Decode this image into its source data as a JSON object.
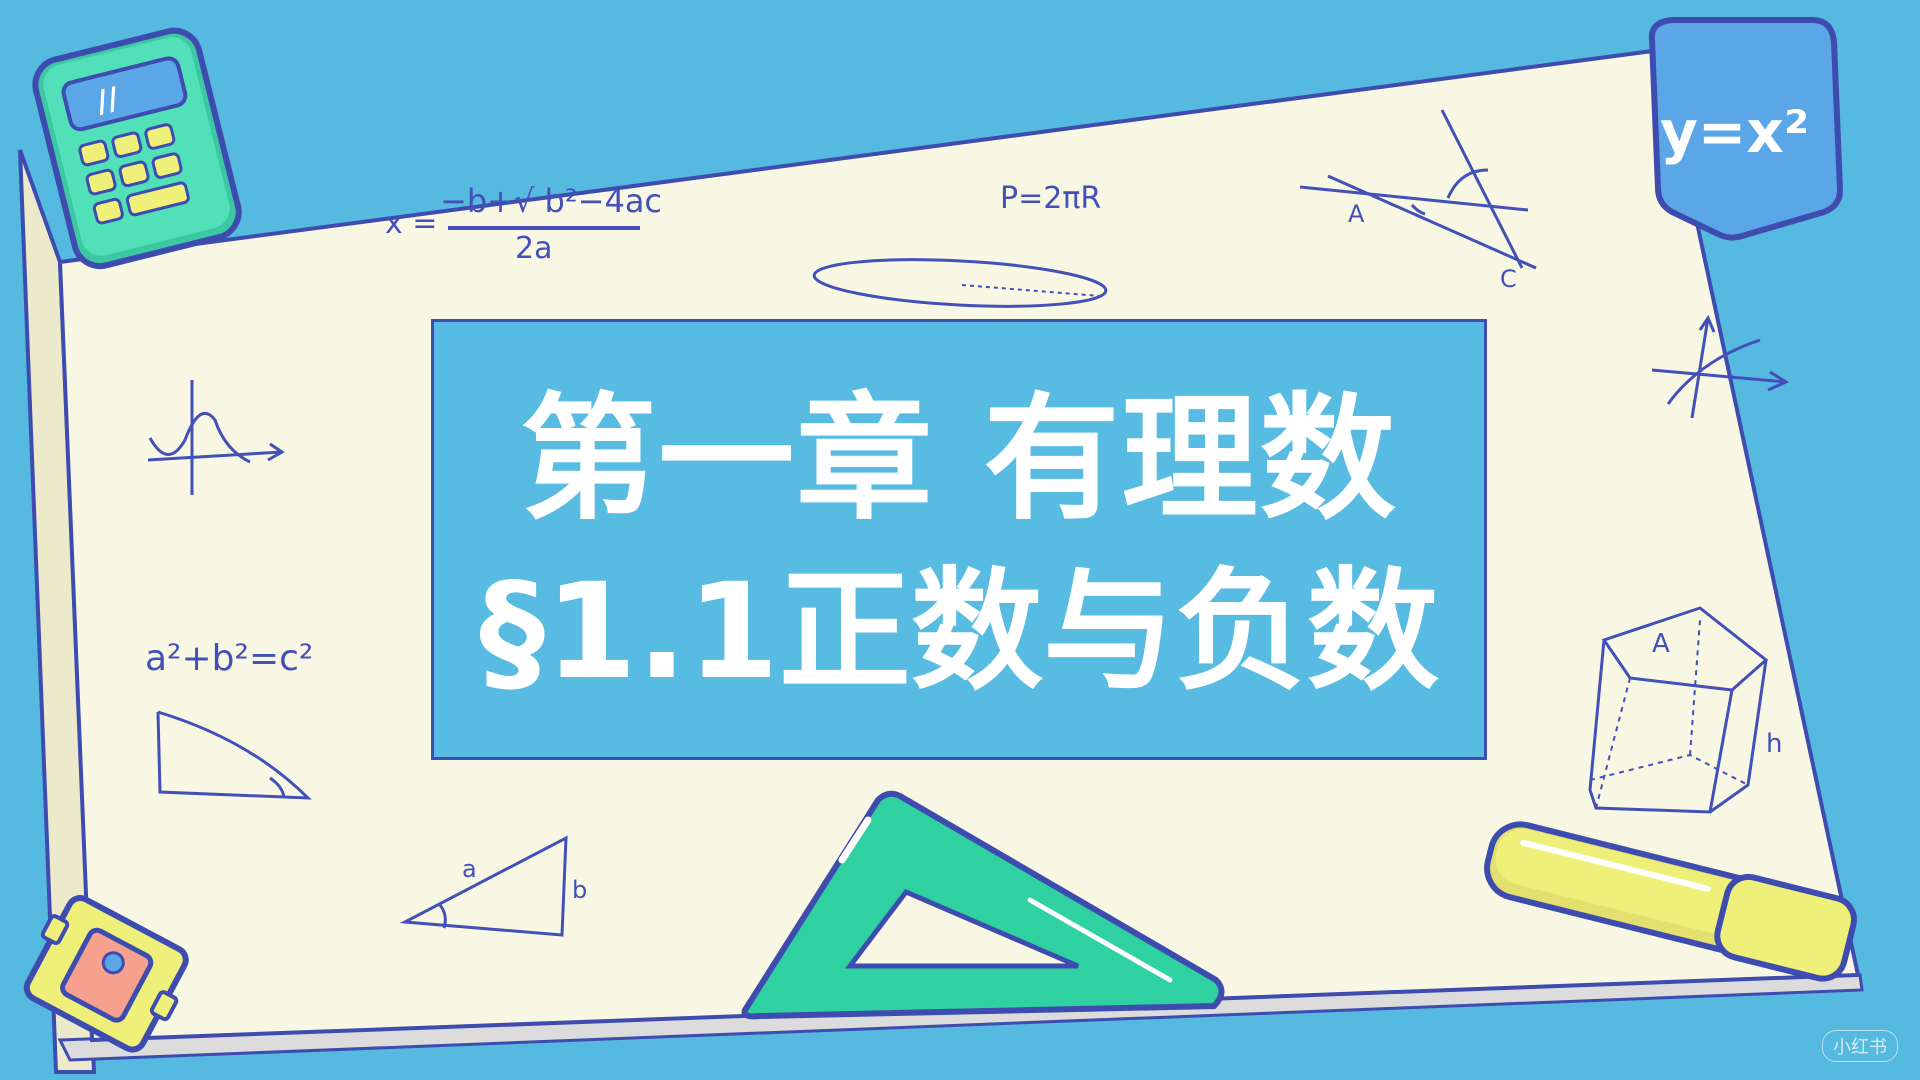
{
  "slide": {
    "title_line_1": "第一章 有理数",
    "title_line_2": "§1.1正数与负数"
  },
  "formulas": {
    "quadratic_lhs": "x =",
    "quadratic_numerator": "−b+√ b²−4ac",
    "quadratic_denominator": "2a",
    "circumference": "P=2πR",
    "power_function": "y=x²",
    "pythagorean": "a²+b²=c²"
  },
  "geometry_labels": {
    "angle_point_a": "A",
    "angle_point_c": "C",
    "triangle_side_a": "a",
    "triangle_side_b": "b",
    "prism_top": "A",
    "prism_height": "h"
  },
  "watermark": "小红书",
  "colors": {
    "background": "#55b9e0",
    "board": "#f8f7e3",
    "ink": "#4350b8",
    "title_box": "#58bbe2",
    "ruler_green": "#2fd1a0",
    "highlighter_yellow": "#eef07a",
    "badge_blue": "#5ba6e6"
  }
}
